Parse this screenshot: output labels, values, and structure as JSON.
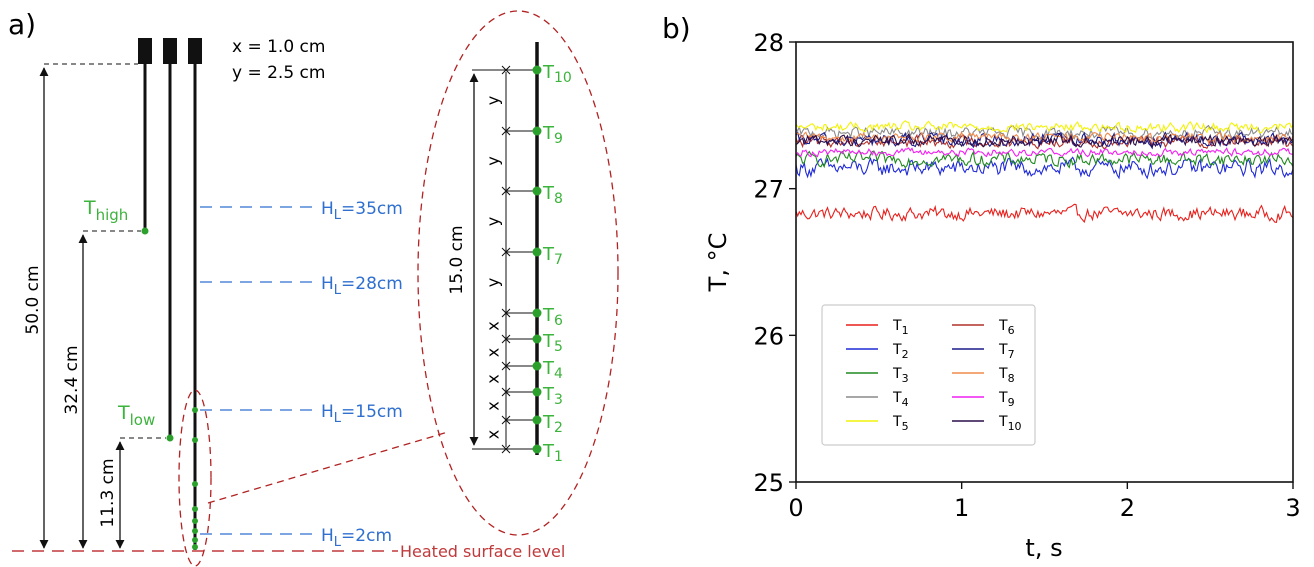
{
  "panel_a": {
    "label": "a)",
    "spacing": {
      "x_text": "x = 1.0 cm",
      "y_text": "y = 2.5 cm"
    },
    "probes": {
      "high": "T",
      "high_sub": "high",
      "low": "T",
      "low_sub": "low"
    },
    "dimensions": {
      "total": "50.0 cm",
      "high": "32.4 cm",
      "low": "11.3 cm",
      "zoom": "15.0 cm"
    },
    "levels": [
      {
        "label": "H",
        "sub": "L",
        "value": "=35cm"
      },
      {
        "label": "H",
        "sub": "L",
        "value": "=28cm"
      },
      {
        "label": "H",
        "sub": "L",
        "value": "=15cm"
      },
      {
        "label": "H",
        "sub": "L",
        "value": "=2cm"
      }
    ],
    "surface_label": "Heated surface level",
    "sensors": [
      {
        "name": "T",
        "sub": "10"
      },
      {
        "name": "T",
        "sub": "9"
      },
      {
        "name": "T",
        "sub": "8"
      },
      {
        "name": "T",
        "sub": "7"
      },
      {
        "name": "T",
        "sub": "6"
      },
      {
        "name": "T",
        "sub": "5"
      },
      {
        "name": "T",
        "sub": "4"
      },
      {
        "name": "T",
        "sub": "3"
      },
      {
        "name": "T",
        "sub": "2"
      },
      {
        "name": "T",
        "sub": "1"
      }
    ],
    "gap_labels": [
      "y",
      "y",
      "y",
      "y",
      "x",
      "x",
      "x",
      "x",
      "x"
    ],
    "colors": {
      "sensor": "#2ca02c",
      "sensor_text": "#3cb33c",
      "level": "#2f6fcf",
      "surface": "#c0393b"
    }
  },
  "panel_b": {
    "label": "b)"
  },
  "chart_data": {
    "type": "line",
    "xlabel": "t, s",
    "ylabel": "T, °C",
    "xlim": [
      0,
      3
    ],
    "ylim": [
      25,
      28
    ],
    "xticks": [
      "0",
      "1",
      "2",
      "3"
    ],
    "yticks": [
      "25",
      "26",
      "27",
      "28"
    ],
    "grid": false,
    "legend_position": "lower-left",
    "series": [
      {
        "name": "T",
        "sub": "1",
        "color": "#e8201c",
        "mean": 26.83,
        "noise": 0.07
      },
      {
        "name": "T",
        "sub": "2",
        "color": "#1f2ad6",
        "mean": 27.14,
        "noise": 0.09
      },
      {
        "name": "T",
        "sub": "3",
        "color": "#208a20",
        "mean": 27.2,
        "noise": 0.07
      },
      {
        "name": "T",
        "sub": "4",
        "color": "#8a8a8a",
        "mean": 27.38,
        "noise": 0.06
      },
      {
        "name": "T",
        "sub": "5",
        "color": "#f2f20a",
        "mean": 27.42,
        "noise": 0.05
      },
      {
        "name": "T",
        "sub": "6",
        "color": "#b0322a",
        "mean": 27.32,
        "noise": 0.06
      },
      {
        "name": "T",
        "sub": "7",
        "color": "#1a1a8a",
        "mean": 27.33,
        "noise": 0.07
      },
      {
        "name": "T",
        "sub": "8",
        "color": "#f08a4a",
        "mean": 27.35,
        "noise": 0.05
      },
      {
        "name": "T",
        "sub": "9",
        "color": "#f020f0",
        "mean": 27.25,
        "noise": 0.04
      },
      {
        "name": "T",
        "sub": "10",
        "color": "#2a0f4a",
        "mean": 27.33,
        "noise": 0.06
      }
    ]
  }
}
